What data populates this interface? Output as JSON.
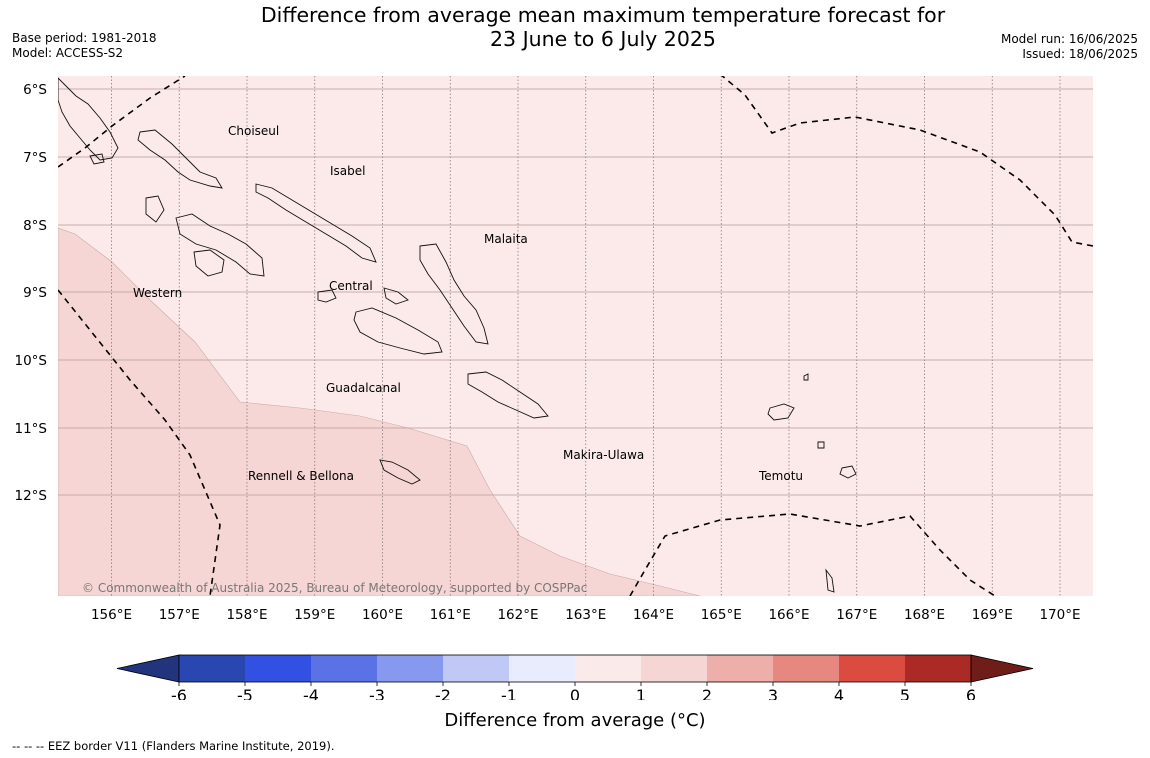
{
  "header": {
    "title_line1": "Difference from average mean maximum temperature forecast for",
    "title_line2": "23 June to 6 July 2025",
    "base_period": "Base period: 1981-2018",
    "model": "Model: ACCESS-S2",
    "model_run": "Model run: 16/06/2025",
    "issued": "Issued: 18/06/2025"
  },
  "map": {
    "lat_ticks": [
      "6°S",
      "7°S",
      "8°S",
      "9°S",
      "10°S",
      "11°S",
      "12°S"
    ],
    "lon_ticks": [
      "156°E",
      "157°E",
      "158°E",
      "159°E",
      "160°E",
      "161°E",
      "162°E",
      "163°E",
      "164°E",
      "165°E",
      "166°E",
      "167°E",
      "168°E",
      "169°E",
      "170°E"
    ],
    "provinces": [
      "Choiseul",
      "Isabel",
      "Malaita",
      "Central",
      "Western",
      "Guadalcanal",
      "Makira-Ulawa",
      "Temotu",
      "Rennell & Bellona"
    ],
    "copyright": "© Commonwealth of Australia 2025, Bureau of Meteorology, supported by COSPPac",
    "fill_colors": {
      "band_0_1": "#fbeae9",
      "band_1_2": "#f5d6d4"
    }
  },
  "colorbar": {
    "ticks": [
      "-6",
      "-5",
      "-4",
      "-3",
      "-2",
      "-1",
      "0",
      "1",
      "2",
      "3",
      "4",
      "5",
      "6"
    ],
    "colors": [
      "#22347e",
      "#2a46b1",
      "#3250e2",
      "#5a72e6",
      "#8699ee",
      "#c0c8f5",
      "#e9ecfc",
      "#fbeaea",
      "#f5d6d4",
      "#eeaeaa",
      "#e68780",
      "#dc4b40",
      "#ac2a25",
      "#6e1d18"
    ],
    "label": "Difference from average (°C)"
  },
  "footnote": "--  --  -- EEZ border V11 (Flanders Marine Institute, 2019)."
}
